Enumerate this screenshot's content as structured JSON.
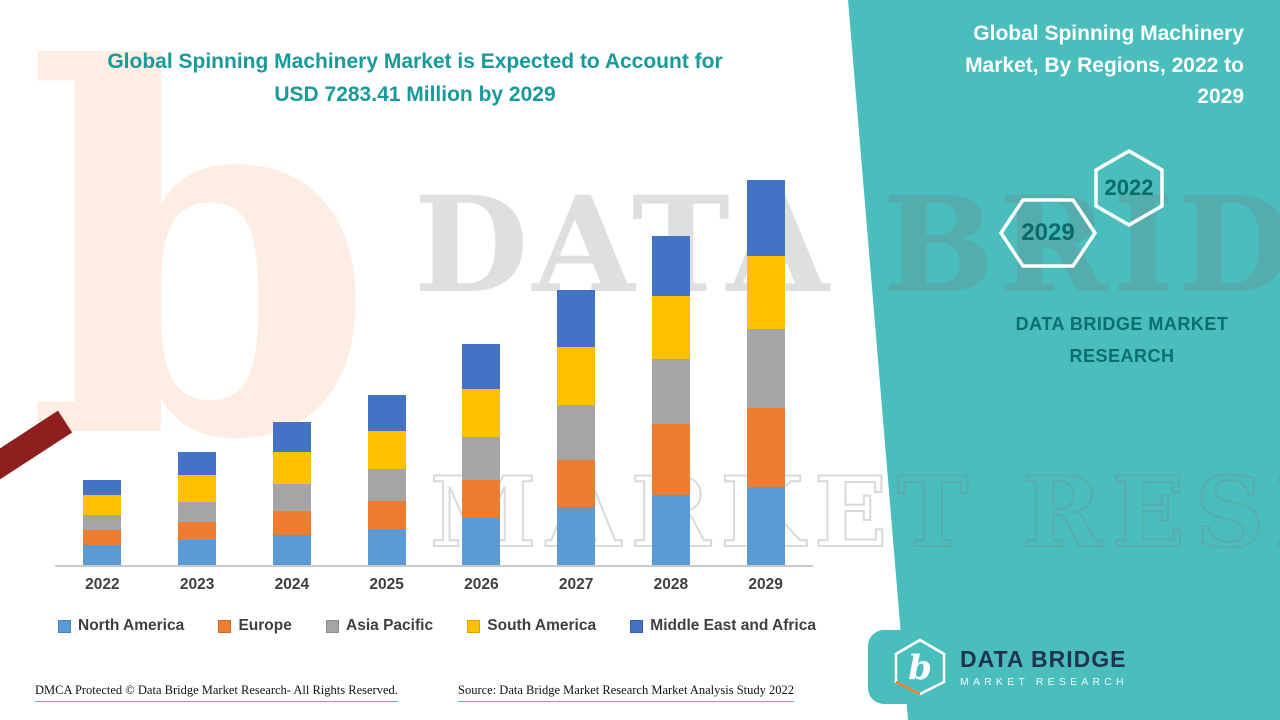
{
  "page": {
    "main_title": "Global Spinning Machinery Market is Expected to Account for USD 7283.41 Million by 2029",
    "footer": {
      "dmca": "DMCA Protected © Data Bridge Market Research- All Rights Reserved.",
      "source": "Source: Data Bridge Market Research Market Analysis Study 2022"
    }
  },
  "side_panel": {
    "title": "Global Spinning Machinery Market, By Regions, 2022 to 2029",
    "hexagons": [
      {
        "label": "2022"
      },
      {
        "label": "2029"
      }
    ],
    "brand_line1": "DATA BRIDGE MARKET",
    "brand_line2": "RESEARCH"
  },
  "logo": {
    "name": "DATA BRIDGE",
    "tagline": "MARKET RESEARCH",
    "monogram": "b"
  },
  "watermark": {
    "line1": "DATA BRIDGE",
    "line2": "MARKET RESEARCH",
    "monogram": "b"
  },
  "colors": {
    "teal_background": "#4ABDBD",
    "teal_title_text": "#189A9A",
    "teal_dark_text": "#0C6E6E",
    "axis_label": "#3F3F3F",
    "north_america": "#5B9BD5",
    "europe": "#ED7D31",
    "asia_pacific": "#A5A5A5",
    "south_america": "#FFC000",
    "middle_east_africa": "#4472C4"
  },
  "chart_data": {
    "type": "bar",
    "stacked": true,
    "title": "Global Spinning Machinery Market, By Regions, 2022 to 2029",
    "unit": "USD Million",
    "categories": [
      "2022",
      "2023",
      "2024",
      "2025",
      "2026",
      "2027",
      "2028",
      "2029"
    ],
    "series": [
      {
        "name": "North America",
        "color": "#5B9BD5",
        "values": [
          380,
          475,
          570,
          685,
          895,
          1100,
          1330,
          1480
        ]
      },
      {
        "name": "Europe",
        "color": "#ED7D31",
        "values": [
          285,
          340,
          455,
          530,
          720,
          895,
          1330,
          1500
        ]
      },
      {
        "name": "Asia Pacific",
        "color": "#A5A5A5",
        "values": [
          285,
          380,
          515,
          610,
          815,
          1025,
          1235,
          1480
        ]
      },
      {
        "name": "South America",
        "color": "#FFC000",
        "values": [
          380,
          515,
          590,
          705,
          895,
          1100,
          1195,
          1390
        ]
      },
      {
        "name": "Middle East and Africa",
        "color": "#4472C4",
        "values": [
          285,
          435,
          570,
          685,
          855,
          1085,
          1140,
          1433.41
        ]
      }
    ],
    "totals": [
      1615,
      2145,
      2700,
      3215,
      4180,
      5205,
      6230,
      7283.41
    ],
    "ylim": [
      0,
      7600
    ],
    "grid": false,
    "legend_position": "bottom",
    "values_estimated": true
  }
}
